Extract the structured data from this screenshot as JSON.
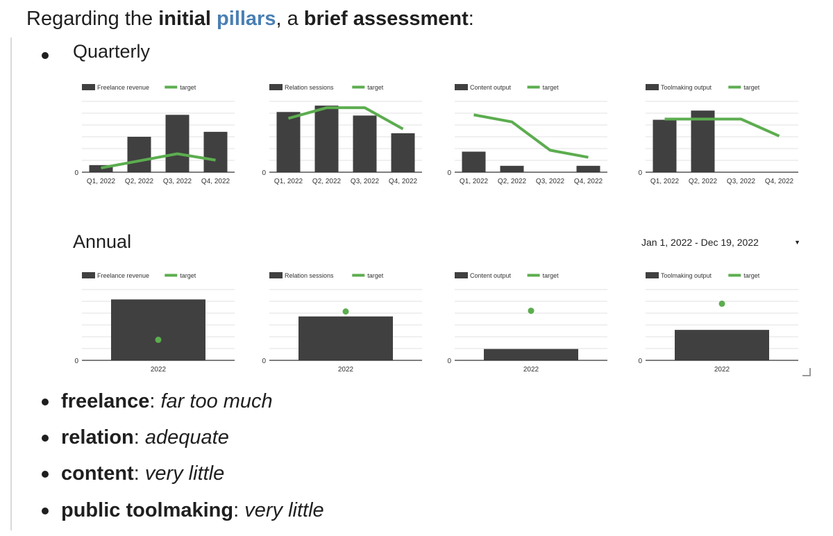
{
  "heading": {
    "t1": "Regarding the ",
    "b1": "initial",
    "t2": " ",
    "link": "pillars",
    "t3": ", a ",
    "b2": "brief assessment",
    "t4": ":"
  },
  "quarterly_title": "Quarterly",
  "annual_title": "Annual",
  "date_range": "Jan 1, 2022 - Dec 19, 2022",
  "colors": {
    "bar": "#404040",
    "target": "#5cad4f",
    "grid": "#e0e0e0",
    "axis": "#333333"
  },
  "chart_data": [
    {
      "type": "bar",
      "label": "Freelance revenue",
      "legend": [
        "Freelance revenue",
        "target"
      ],
      "categories": [
        "Q1, 2022",
        "Q2, 2022",
        "Q3, 2022",
        "Q4, 2022"
      ],
      "values": [
        1,
        5,
        8.1,
        5.7
      ],
      "target": [
        0.6,
        1.6,
        2.6,
        1.7
      ],
      "ylim": [
        0,
        10
      ],
      "ytick": "0"
    },
    {
      "type": "bar",
      "label": "Relation sessions",
      "legend": [
        "Relation sessions",
        "target"
      ],
      "categories": [
        "Q1, 2022",
        "Q2, 2022",
        "Q3, 2022",
        "Q4, 2022"
      ],
      "values": [
        8.5,
        9.4,
        8,
        5.5
      ],
      "target": [
        7.6,
        9.1,
        9.1,
        6.1
      ],
      "ylim": [
        0,
        10
      ],
      "ytick": "0"
    },
    {
      "type": "bar",
      "label": "Content output",
      "legend": [
        "Content output",
        "target"
      ],
      "categories": [
        "Q1, 2022",
        "Q2, 2022",
        "Q3, 2022",
        "Q4, 2022"
      ],
      "values": [
        2.9,
        0.9,
        0,
        0.9
      ],
      "target": [
        8.1,
        7.1,
        3.1,
        2.1
      ],
      "ylim": [
        0,
        10
      ],
      "ytick": "0"
    },
    {
      "type": "bar",
      "label": "Toolmaking output",
      "legend": [
        "Toolmaking output",
        "target"
      ],
      "categories": [
        "Q1, 2022",
        "Q2, 2022",
        "Q3, 2022",
        "Q4, 2022"
      ],
      "values": [
        7.4,
        8.7,
        0,
        0
      ],
      "target": [
        7.5,
        7.5,
        7.5,
        5.1
      ],
      "ylim": [
        0,
        10
      ],
      "ytick": "0"
    },
    {
      "type": "bar",
      "label": "Freelance revenue (annual)",
      "legend": [
        "Freelance revenue",
        "target"
      ],
      "categories": [
        "2022"
      ],
      "values": [
        8.6
      ],
      "target": [
        2.9
      ],
      "ylim": [
        0,
        10
      ],
      "ytick": "0"
    },
    {
      "type": "bar",
      "label": "Relation sessions (annual)",
      "legend": [
        "Relation sessions",
        "target"
      ],
      "categories": [
        "2022"
      ],
      "values": [
        6.2
      ],
      "target": [
        6.9
      ],
      "ylim": [
        0,
        10
      ],
      "ytick": "0"
    },
    {
      "type": "bar",
      "label": "Content output (annual)",
      "legend": [
        "Content output",
        "target"
      ],
      "categories": [
        "2022"
      ],
      "values": [
        1.6
      ],
      "target": [
        7.0
      ],
      "ylim": [
        0,
        10
      ],
      "ytick": "0"
    },
    {
      "type": "bar",
      "label": "Toolmaking output (annual)",
      "legend": [
        "Toolmaking output",
        "target"
      ],
      "categories": [
        "2022"
      ],
      "values": [
        4.3
      ],
      "target": [
        8.0
      ],
      "ylim": [
        0,
        10
      ],
      "ytick": "0"
    }
  ],
  "summary": [
    {
      "term": "freelance",
      "sep": ": ",
      "verdict": "far too much"
    },
    {
      "term": "relation",
      "sep": ": ",
      "verdict": "adequate"
    },
    {
      "term": "content",
      "sep": ": ",
      "verdict": "very little"
    },
    {
      "term": "public toolmaking",
      "sep": ": ",
      "verdict": "very little"
    }
  ]
}
